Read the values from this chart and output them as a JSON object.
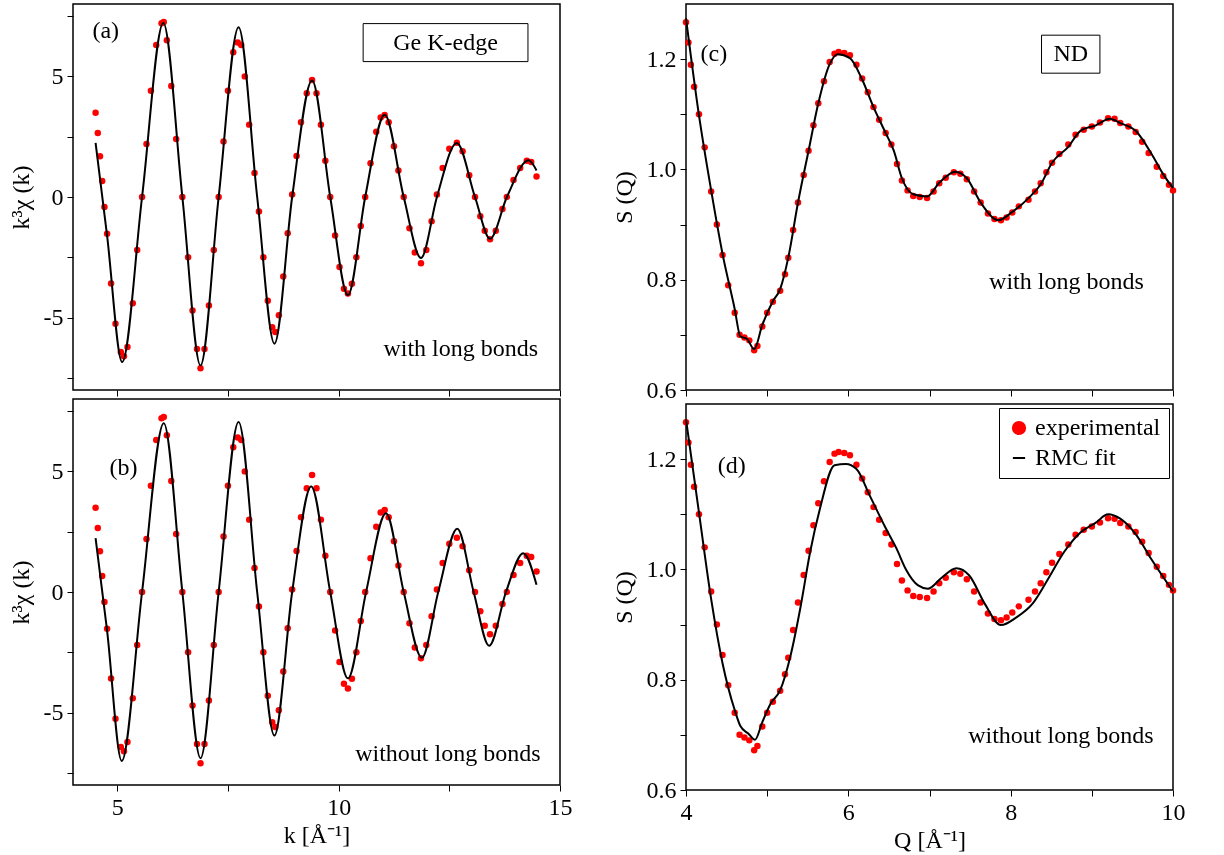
{
  "chart_data": [
    {
      "type": "scatter",
      "ylabel": "k³χ (k)",
      "xlim": [
        4,
        15
      ],
      "ylim": [
        -8,
        8
      ],
      "xticks": [
        5,
        {
          "value": 7.5,
          "label": null
        },
        10,
        {
          "value": 12.5,
          "label": null
        },
        15
      ],
      "yticks": [
        {
          "value": -7.5,
          "label": null
        },
        -5,
        {
          "value": -2.5,
          "label": null
        },
        0,
        {
          "value": 2.5,
          "label": null
        },
        5,
        {
          "value": 7.5,
          "label": null
        }
      ],
      "tick_labels": "y",
      "line_style": "solid",
      "annotations": [
        "(a)",
        "Ge K-edge",
        "with long bonds"
      ],
      "series": [
        {
          "type": "scatter",
          "marker": "circle",
          "color": "#ff0000",
          "x": [
            4.51,
            4.56,
            4.61,
            4.66,
            4.71,
            4.77,
            4.86,
            4.96,
            5.08,
            5.15,
            5.23,
            5.35,
            5.45,
            5.56,
            5.66,
            5.76,
            5.88,
            6.0,
            6.05,
            6.12,
            6.22,
            6.33,
            6.47,
            6.6,
            6.7,
            6.8,
            6.88,
            6.97,
            7.07,
            7.18,
            7.29,
            7.4,
            7.5,
            7.62,
            7.72,
            7.8,
            7.88,
            7.98,
            8.1,
            8.2,
            8.3,
            8.4,
            8.5,
            8.57,
            8.65,
            8.75,
            8.85,
            8.95,
            9.05,
            9.15,
            9.28,
            9.4,
            9.5,
            9.6,
            9.7,
            9.81,
            9.92,
            10.02,
            10.12,
            10.21,
            10.3,
            10.4,
            10.5,
            10.6,
            10.72,
            10.85,
            10.95,
            11.04,
            11.13,
            11.25,
            11.35,
            11.47,
            11.6,
            11.72,
            11.86,
            11.98,
            12.1,
            12.22,
            12.35,
            12.5,
            12.67,
            12.8,
            12.95,
            13.08,
            13.2,
            13.3,
            13.42,
            13.55,
            13.7,
            13.8,
            13.95,
            14.1,
            14.25,
            14.35,
            14.47
          ],
          "values": [
            3.49,
            2.65,
            1.69,
            0.66,
            -0.41,
            -1.52,
            -3.59,
            -5.25,
            -6.42,
            -6.6,
            -6.22,
            -4.4,
            -2.2,
            0,
            2.2,
            4.4,
            6.3,
            7.2,
            7.25,
            6.5,
            4.6,
            2.4,
            0,
            -2.5,
            -4.7,
            -6.3,
            -7.1,
            -6.3,
            -4.5,
            -2.2,
            0,
            2.3,
            4.4,
            6.0,
            6.4,
            6.3,
            5.0,
            3.0,
            1.0,
            -0.6,
            -2.5,
            -4.3,
            -5.4,
            -5.6,
            -4.9,
            -3.3,
            -1.5,
            0.1,
            1.7,
            3.1,
            4.3,
            4.85,
            4.3,
            3.0,
            1.5,
            0,
            -1.6,
            -2.9,
            -3.8,
            -4.0,
            -3.6,
            -2.5,
            -1.2,
            0,
            1.4,
            2.7,
            3.3,
            3.4,
            3.1,
            2.1,
            1.1,
            0,
            -1.3,
            -2.3,
            -2.75,
            -2.2,
            -1.0,
            0.1,
            1.2,
            2.0,
            2.25,
            1.9,
            0.9,
            0,
            -0.8,
            -1.4,
            -1.75,
            -1.4,
            -0.5,
            0,
            0.7,
            1.2,
            1.5,
            1.45,
            0.85
          ]
        },
        {
          "type": "line",
          "color": "#000000",
          "x": [
            4.51,
            4.77,
            5.11,
            5.56,
            6.04,
            6.47,
            6.88,
            7.29,
            7.74,
            8.16,
            8.55,
            8.95,
            9.4,
            9.81,
            10.21,
            10.6,
            11.04,
            11.47,
            11.86,
            12.22,
            12.67,
            13.08,
            13.42,
            13.8,
            14.29,
            14.47
          ],
          "values": [
            2.24,
            -1.6,
            -6.84,
            0,
            7.21,
            0,
            -6.98,
            0,
            7.04,
            0,
            -6.08,
            0,
            4.83,
            0,
            -4.07,
            0,
            3.41,
            0,
            -2.53,
            0,
            2.24,
            0,
            -1.73,
            0,
            1.52,
            1.1
          ]
        }
      ]
    },
    {
      "type": "scatter",
      "xlabel": "k [Å⁻¹]",
      "ylabel": "k³χ (k)",
      "xlim": [
        4,
        15
      ],
      "ylim": [
        -8,
        8
      ],
      "xticks": [
        5,
        {
          "value": 7.5,
          "label": null
        },
        10,
        {
          "value": 12.5,
          "label": null
        },
        15
      ],
      "yticks": [
        {
          "value": -7.5,
          "label": null
        },
        -5,
        {
          "value": -2.5,
          "label": null
        },
        0,
        {
          "value": 2.5,
          "label": null
        },
        5,
        {
          "value": 7.5,
          "label": null
        }
      ],
      "line_style": "solid",
      "annotations": [
        "(b)",
        "without long bonds"
      ],
      "series": [
        {
          "type": "scatter",
          "marker": "circle",
          "color": "#ff0000",
          "x": [
            4.51,
            4.56,
            4.61,
            4.66,
            4.71,
            4.77,
            4.86,
            4.96,
            5.08,
            5.15,
            5.23,
            5.35,
            5.45,
            5.56,
            5.66,
            5.76,
            5.88,
            6.0,
            6.05,
            6.12,
            6.22,
            6.33,
            6.47,
            6.6,
            6.7,
            6.8,
            6.88,
            6.97,
            7.07,
            7.18,
            7.29,
            7.4,
            7.5,
            7.62,
            7.72,
            7.8,
            7.88,
            7.98,
            8.1,
            8.2,
            8.3,
            8.4,
            8.5,
            8.57,
            8.65,
            8.75,
            8.85,
            8.95,
            9.05,
            9.15,
            9.28,
            9.4,
            9.5,
            9.6,
            9.7,
            9.81,
            9.92,
            10.02,
            10.12,
            10.21,
            10.3,
            10.4,
            10.5,
            10.6,
            10.72,
            10.85,
            10.95,
            11.04,
            11.13,
            11.25,
            11.35,
            11.47,
            11.6,
            11.72,
            11.86,
            11.98,
            12.1,
            12.22,
            12.35,
            12.5,
            12.67,
            12.8,
            12.95,
            13.08,
            13.2,
            13.3,
            13.42,
            13.55,
            13.7,
            13.8,
            13.95,
            14.1,
            14.25,
            14.35,
            14.47
          ],
          "values": [
            3.49,
            2.65,
            1.69,
            0.66,
            -0.41,
            -1.52,
            -3.59,
            -5.25,
            -6.42,
            -6.6,
            -6.22,
            -4.4,
            -2.2,
            0,
            2.2,
            4.4,
            6.3,
            7.2,
            7.25,
            6.5,
            4.6,
            2.4,
            0,
            -2.5,
            -4.7,
            -6.3,
            -7.1,
            -6.3,
            -4.5,
            -2.2,
            0,
            2.3,
            4.4,
            6.0,
            6.4,
            6.3,
            5.0,
            3.0,
            1.0,
            -0.6,
            -2.5,
            -4.3,
            -5.4,
            -5.6,
            -4.9,
            -3.3,
            -1.5,
            0.1,
            1.7,
            3.1,
            4.3,
            4.85,
            4.3,
            3.0,
            1.5,
            0,
            -1.6,
            -2.9,
            -3.8,
            -4.0,
            -3.6,
            -2.5,
            -1.2,
            0,
            1.4,
            2.7,
            3.3,
            3.4,
            3.1,
            2.1,
            1.1,
            0,
            -1.3,
            -2.3,
            -2.75,
            -2.2,
            -1.0,
            0.1,
            1.2,
            2.0,
            2.25,
            1.9,
            0.9,
            0,
            -0.8,
            -1.4,
            -1.75,
            -1.4,
            -0.5,
            0,
            0.7,
            1.2,
            1.5,
            1.45,
            0.85
          ]
        },
        {
          "type": "line",
          "color": "#000000",
          "x": [
            4.51,
            4.77,
            5.1,
            5.56,
            6.05,
            6.47,
            6.88,
            7.29,
            7.74,
            8.16,
            8.55,
            8.95,
            9.38,
            9.81,
            10.21,
            10.62,
            11.07,
            11.47,
            11.88,
            12.25,
            12.68,
            13.05,
            13.4,
            13.78,
            14.17,
            14.47
          ],
          "values": [
            2.23,
            -1.6,
            -7.0,
            0,
            7.0,
            0,
            -6.89,
            0,
            7.05,
            0,
            -5.95,
            0,
            4.37,
            0,
            -3.58,
            0,
            3.26,
            0,
            -2.73,
            0,
            2.62,
            0,
            -2.23,
            0,
            1.61,
            0.3
          ]
        }
      ]
    },
    {
      "type": "scatter",
      "ylabel": "S (Q)",
      "xlim": [
        4,
        10
      ],
      "ylim": [
        0.6,
        1.3
      ],
      "xticks": [
        4,
        {
          "value": 5,
          "label": null
        },
        6,
        {
          "value": 7,
          "label": null
        },
        8,
        {
          "value": 9,
          "label": null
        },
        10
      ],
      "yticks": [
        {
          "value": 0.6,
          "label": "0.6"
        },
        {
          "value": 0.7,
          "label": null
        },
        0.8,
        {
          "value": 0.9,
          "label": null
        },
        {
          "value": 1,
          "label": "1.0"
        },
        {
          "value": 1.1,
          "label": null
        },
        1.2
      ],
      "tick_labels": "y",
      "line_style": "solid",
      "annotations": [
        "(c)",
        "ND",
        "with long bonds"
      ],
      "series": [
        {
          "type": "scatter",
          "marker": "circle",
          "color": "#ff0000",
          "x": [
            4.0,
            4.03,
            4.06,
            4.1,
            4.16,
            4.23,
            4.31,
            4.38,
            4.45,
            4.52,
            4.6,
            4.66,
            4.72,
            4.78,
            4.84,
            4.88,
            4.94,
            5.0,
            5.07,
            5.16,
            5.22,
            5.26,
            5.32,
            5.38,
            5.45,
            5.51,
            5.57,
            5.63,
            5.7,
            5.77,
            5.83,
            5.88,
            5.95,
            6.02,
            6.1,
            6.17,
            6.24,
            6.31,
            6.38,
            6.46,
            6.53,
            6.6,
            6.66,
            6.73,
            6.8,
            6.88,
            6.97,
            7.05,
            7.12,
            7.2,
            7.3,
            7.38,
            7.46,
            7.55,
            7.63,
            7.72,
            7.8,
            7.88,
            7.95,
            8.02,
            8.1,
            8.22,
            8.3,
            8.37,
            8.44,
            8.51,
            8.6,
            8.71,
            8.8,
            8.9,
            9.0,
            9.1,
            9.2,
            9.28,
            9.35,
            9.45,
            9.54,
            9.62,
            9.7,
            9.8,
            9.88,
            9.95,
            10.0
          ],
          "values": [
            1.267,
            1.23,
            1.19,
            1.15,
            1.1,
            1.04,
            0.96,
            0.9,
            0.845,
            0.79,
            0.74,
            0.7,
            0.695,
            0.69,
            0.672,
            0.68,
            0.715,
            0.74,
            0.76,
            0.78,
            0.81,
            0.84,
            0.89,
            0.94,
            0.99,
            1.034,
            1.08,
            1.12,
            1.16,
            1.195,
            1.21,
            1.213,
            1.211,
            1.207,
            1.19,
            1.165,
            1.14,
            1.113,
            1.09,
            1.066,
            1.045,
            1.01,
            0.98,
            0.962,
            0.952,
            0.95,
            0.948,
            0.96,
            0.975,
            0.985,
            0.995,
            0.992,
            0.982,
            0.96,
            0.94,
            0.92,
            0.91,
            0.908,
            0.913,
            0.922,
            0.933,
            0.945,
            0.96,
            0.975,
            0.995,
            1.012,
            1.028,
            1.045,
            1.063,
            1.072,
            1.078,
            1.085,
            1.093,
            1.092,
            1.084,
            1.078,
            1.068,
            1.05,
            1.03,
            1.005,
            0.988,
            0.972,
            0.962
          ]
        },
        {
          "type": "line",
          "color": "#000000",
          "x": [
            4.0,
            4.16,
            4.31,
            4.45,
            4.6,
            4.67,
            4.75,
            4.84,
            4.94,
            5.07,
            5.16,
            5.26,
            5.38,
            5.51,
            5.63,
            5.77,
            5.87,
            6.02,
            6.17,
            6.31,
            6.46,
            6.56,
            6.66,
            6.8,
            6.97,
            7.12,
            7.32,
            7.46,
            7.63,
            7.85,
            8.02,
            8.22,
            8.37,
            8.51,
            8.71,
            8.86,
            9.05,
            9.22,
            9.35,
            9.54,
            9.74,
            9.88,
            10.0
          ],
          "values": [
            1.274,
            1.098,
            0.962,
            0.847,
            0.747,
            0.697,
            0.693,
            0.674,
            0.718,
            0.761,
            0.783,
            0.84,
            0.94,
            1.034,
            1.12,
            1.191,
            1.209,
            1.202,
            1.163,
            1.113,
            1.066,
            1.034,
            0.984,
            0.955,
            0.951,
            0.976,
            0.996,
            0.984,
            0.94,
            0.908,
            0.923,
            0.948,
            0.973,
            1.012,
            1.041,
            1.07,
            1.08,
            1.092,
            1.084,
            1.07,
            1.027,
            0.991,
            0.966
          ]
        }
      ]
    },
    {
      "type": "scatter",
      "xlabel": "Q [Å⁻¹]",
      "ylabel": "S (Q)",
      "xlim": [
        4,
        10
      ],
      "ylim": [
        0.6,
        1.3
      ],
      "xticks": [
        4,
        {
          "value": 5,
          "label": null
        },
        6,
        {
          "value": 7,
          "label": null
        },
        8,
        {
          "value": 9,
          "label": null
        },
        10
      ],
      "yticks": [
        {
          "value": 0.6,
          "label": "0.6"
        },
        {
          "value": 0.7,
          "label": null
        },
        0.8,
        {
          "value": 0.9,
          "label": null
        },
        {
          "value": 1,
          "label": "1.0"
        },
        {
          "value": 1.1,
          "label": null
        },
        1.2
      ],
      "line_style": "solid",
      "legend": "top right",
      "annotations": [
        "(d)",
        "without long bonds"
      ],
      "series": [
        {
          "type": "scatter",
          "marker": "circle",
          "name": "experimental",
          "color": "#ff0000",
          "x": [
            4.0,
            4.03,
            4.06,
            4.1,
            4.16,
            4.23,
            4.31,
            4.38,
            4.45,
            4.52,
            4.6,
            4.66,
            4.72,
            4.78,
            4.84,
            4.88,
            4.94,
            5.0,
            5.07,
            5.16,
            5.22,
            5.26,
            5.32,
            5.38,
            5.45,
            5.51,
            5.57,
            5.63,
            5.7,
            5.77,
            5.83,
            5.88,
            5.95,
            6.02,
            6.1,
            6.17,
            6.24,
            6.31,
            6.38,
            6.46,
            6.53,
            6.6,
            6.66,
            6.73,
            6.8,
            6.88,
            6.97,
            7.05,
            7.12,
            7.2,
            7.3,
            7.38,
            7.46,
            7.55,
            7.63,
            7.72,
            7.8,
            7.88,
            7.95,
            8.02,
            8.1,
            8.22,
            8.3,
            8.37,
            8.44,
            8.51,
            8.6,
            8.71,
            8.8,
            8.9,
            9.0,
            9.1,
            9.2,
            9.28,
            9.35,
            9.45,
            9.54,
            9.62,
            9.7,
            9.8,
            9.88,
            9.95,
            10.0
          ],
          "values": [
            1.267,
            1.23,
            1.19,
            1.15,
            1.1,
            1.04,
            0.96,
            0.9,
            0.845,
            0.79,
            0.74,
            0.7,
            0.695,
            0.69,
            0.672,
            0.68,
            0.715,
            0.74,
            0.76,
            0.78,
            0.81,
            0.84,
            0.89,
            0.94,
            0.99,
            1.034,
            1.08,
            1.12,
            1.16,
            1.195,
            1.21,
            1.213,
            1.211,
            1.207,
            1.19,
            1.165,
            1.14,
            1.113,
            1.09,
            1.066,
            1.045,
            1.01,
            0.98,
            0.962,
            0.952,
            0.95,
            0.948,
            0.96,
            0.975,
            0.985,
            0.995,
            0.992,
            0.982,
            0.96,
            0.94,
            0.92,
            0.91,
            0.908,
            0.913,
            0.922,
            0.933,
            0.945,
            0.96,
            0.975,
            0.995,
            1.012,
            1.028,
            1.045,
            1.063,
            1.072,
            1.078,
            1.085,
            1.093,
            1.092,
            1.084,
            1.078,
            1.068,
            1.05,
            1.03,
            1.005,
            0.988,
            0.972,
            0.962
          ]
        },
        {
          "type": "line",
          "name": "RMC fit",
          "color": "#000000",
          "x": [
            4.0,
            4.16,
            4.31,
            4.45,
            4.6,
            4.67,
            4.77,
            4.85,
            4.94,
            5.04,
            5.16,
            5.29,
            5.41,
            5.53,
            5.65,
            5.83,
            5.97,
            6.1,
            6.27,
            6.46,
            6.59,
            6.71,
            6.86,
            6.98,
            7.15,
            7.33,
            7.49,
            7.68,
            7.88,
            8.07,
            8.27,
            8.47,
            8.66,
            8.86,
            9.05,
            9.2,
            9.35,
            9.54,
            9.74,
            10.0
          ],
          "values": [
            1.272,
            1.103,
            0.946,
            0.83,
            0.745,
            0.716,
            0.702,
            0.691,
            0.723,
            0.756,
            0.781,
            0.845,
            0.931,
            1.032,
            1.11,
            1.189,
            1.191,
            1.182,
            1.132,
            1.075,
            1.039,
            1.0,
            0.971,
            0.965,
            0.985,
            1.002,
            0.989,
            0.938,
            0.899,
            0.913,
            0.938,
            0.985,
            1.032,
            1.067,
            1.085,
            1.1,
            1.092,
            1.064,
            1.017,
            0.96
          ]
        }
      ]
    }
  ]
}
